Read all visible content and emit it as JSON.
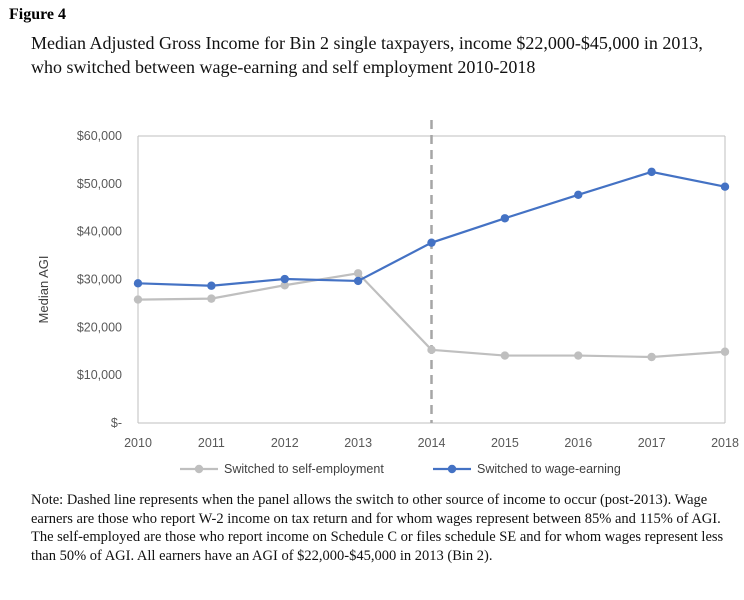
{
  "figure_label": "Figure 4",
  "title": "Median Adjusted Gross Income for Bin 2 single taxpayers, income $22,000-$45,000 in 2013, who switched between wage-earning and self employment 2010-2018",
  "note": "Note: Dashed line represents when the panel allows the switch to other source of income to occur (post-2013). Wage earners are those who report W-2 income on tax return and for whom wages represent between 85% and 115% of AGI. The self-employed are those who report income on Schedule C or files schedule SE and for whom wages represent less than 50% of AGI. All earners have an AGI of $22,000-$45,000 in 2013 (Bin 2).",
  "chart_data": {
    "type": "line",
    "x": [
      2010,
      2011,
      2012,
      2013,
      2014,
      2015,
      2016,
      2017,
      2018
    ],
    "xlabel": "",
    "ylabel": "Median AGI",
    "ylim": [
      0,
      60000
    ],
    "yticks": [
      0,
      10000,
      20000,
      30000,
      40000,
      50000,
      60000
    ],
    "ytick_labels": [
      "$-",
      "$10,000",
      "$20,000",
      "$30,000",
      "$40,000",
      "$50,000",
      "$60,000"
    ],
    "grid": false,
    "legend": "bottom",
    "vline": {
      "x": 2014,
      "style": "dashed",
      "color": "#a6a6a6"
    },
    "series": [
      {
        "name": "Switched to self-employment",
        "color": "#bfbfbf",
        "values": [
          25800,
          26000,
          28800,
          31300,
          15300,
          14100,
          14100,
          13800,
          14900
        ]
      },
      {
        "name": "Switched to wage-earning",
        "color": "#4472c4",
        "values": [
          29200,
          28700,
          30100,
          29700,
          37700,
          42800,
          47700,
          52500,
          49400
        ]
      }
    ]
  }
}
